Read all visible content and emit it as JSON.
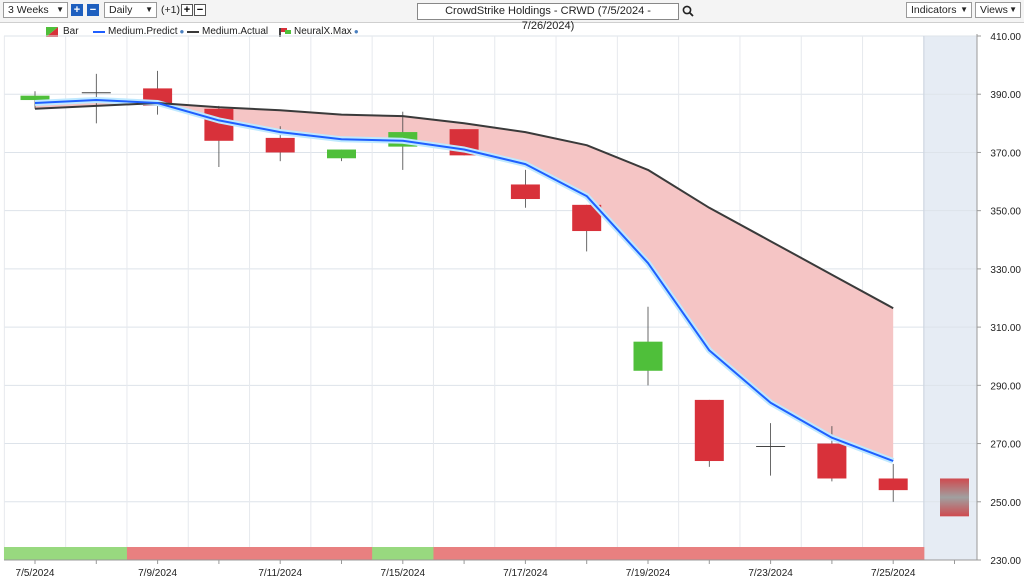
{
  "toolbar": {
    "period": "3 Weeks",
    "interval": "Daily",
    "step": "(+1)",
    "title": "CrowdStrike Holdings - CRWD (7/5/2024 - 7/26/2024)",
    "indicators": "Indicators",
    "views": "Views",
    "plus": "+",
    "minus": "−"
  },
  "legend": {
    "bar": "Bar",
    "predict": "Medium.Predict",
    "actual": "Medium.Actual",
    "neural": "NeuralX.Max"
  },
  "colors": {
    "up": "#4fbf3a",
    "down": "#d8313a",
    "predict": "#1f5fff",
    "actual": "#3a3a3a",
    "band": "#f5c5c5",
    "strip_green": "#98d97f",
    "strip_red": "#e88080",
    "forecast_bg": "#e6ecf4"
  },
  "chart_data": {
    "type": "candlestick",
    "ylim": [
      230,
      410
    ],
    "yticks": [
      "410.00",
      "390.00",
      "370.00",
      "350.00",
      "330.00",
      "310.00",
      "290.00",
      "270.00",
      "250.00",
      "230.00"
    ],
    "xtick_labels": [
      "7/5/2024",
      "7/9/2024",
      "7/11/2024",
      "7/15/2024",
      "7/17/2024",
      "7/19/2024",
      "7/23/2024",
      "7/25/2024"
    ],
    "bars": [
      {
        "date": "7/5/2024",
        "open": 388,
        "high": 391,
        "low": 385,
        "close": 389.5
      },
      {
        "date": "7/8/2024",
        "open": 390.5,
        "high": 397,
        "low": 380,
        "close": 390.5
      },
      {
        "date": "7/9/2024",
        "open": 392,
        "high": 398,
        "low": 383,
        "close": 386
      },
      {
        "date": "7/10/2024",
        "open": 385,
        "high": 386,
        "low": 365,
        "close": 374
      },
      {
        "date": "7/11/2024",
        "open": 375,
        "high": 379,
        "low": 367,
        "close": 370
      },
      {
        "date": "7/12/2024",
        "open": 368,
        "high": 371,
        "low": 367,
        "close": 371
      },
      {
        "date": "7/15/2024",
        "open": 372,
        "high": 384,
        "low": 364,
        "close": 377
      },
      {
        "date": "7/16/2024",
        "open": 378,
        "high": 378,
        "low": 369,
        "close": 369
      },
      {
        "date": "7/17/2024",
        "open": 359,
        "high": 364,
        "low": 351,
        "close": 354
      },
      {
        "date": "7/18/2024",
        "open": 352,
        "high": 352,
        "low": 336,
        "close": 343
      },
      {
        "date": "7/19/2024",
        "open": 295,
        "high": 317,
        "low": 290,
        "close": 305
      },
      {
        "date": "7/22/2024",
        "open": 285,
        "high": 285,
        "low": 262,
        "close": 264
      },
      {
        "date": "7/23/2024",
        "open": 269,
        "high": 277,
        "low": 259,
        "close": 269
      },
      {
        "date": "7/24/2024",
        "open": 270,
        "high": 276,
        "low": 257,
        "close": 258
      },
      {
        "date": "7/25/2024",
        "open": 258,
        "high": 263,
        "low": 250,
        "close": 254
      }
    ],
    "forecast_bar": {
      "date": "7/26/2024",
      "high": 258,
      "low": 245
    },
    "series": [
      {
        "name": "Medium.Predict",
        "values": [
          387,
          388,
          387,
          381,
          377,
          374.5,
          374,
          371,
          366,
          355,
          332,
          302,
          284,
          272,
          264
        ]
      },
      {
        "name": "Medium.Actual",
        "values": [
          385,
          386,
          387,
          385.5,
          384.5,
          383,
          382.5,
          380,
          377,
          372.5,
          364,
          351,
          339.5,
          328,
          316.5
        ]
      }
    ],
    "signal_strip": [
      "green",
      "green",
      "red",
      "red",
      "red",
      "red",
      "green",
      "red",
      "red",
      "red",
      "red",
      "red",
      "red",
      "red",
      "red"
    ]
  }
}
